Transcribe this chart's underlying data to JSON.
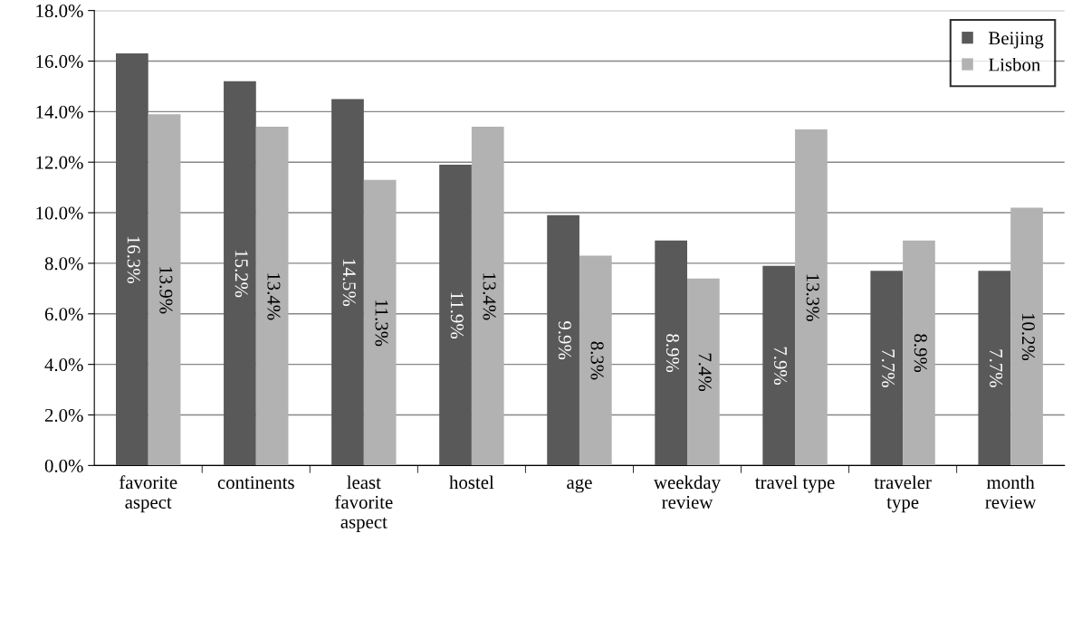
{
  "chart_data": {
    "type": "bar",
    "categories": [
      "favorite\naspect",
      "continents",
      "least\nfavorite\naspect",
      "hostel",
      "age",
      "weekday\nreview",
      "travel type",
      "traveler\ntype",
      "month\nreview"
    ],
    "series": [
      {
        "name": "Beijing",
        "color": "#595959",
        "values": [
          16.3,
          15.2,
          14.5,
          11.9,
          9.9,
          8.9,
          7.9,
          7.7,
          7.7
        ],
        "value_labels": [
          "16.3%",
          "15.2%",
          "14.5%",
          "11.9%",
          "9.9%",
          "8.9%",
          "7.9%",
          "7.7%",
          "7.7%"
        ]
      },
      {
        "name": "Lisbon",
        "color": "#b2b2b2",
        "values": [
          13.9,
          13.4,
          11.3,
          13.4,
          8.3,
          7.4,
          13.3,
          8.9,
          10.2
        ],
        "value_labels": [
          "13.9%",
          "13.4%",
          "11.3%",
          "13.4%",
          "8.3%",
          "7.4%",
          "13.3%",
          "8.9%",
          "10.2%"
        ]
      }
    ],
    "ylim": [
      0,
      18
    ],
    "yticks": [
      {
        "value": 0,
        "label": "0.0%"
      },
      {
        "value": 2,
        "label": "2.0%"
      },
      {
        "value": 4,
        "label": "4.0%"
      },
      {
        "value": 6,
        "label": "6.0%"
      },
      {
        "value": 8,
        "label": "8.0%"
      },
      {
        "value": 10,
        "label": "10.0%"
      },
      {
        "value": 12,
        "label": "12.0%"
      },
      {
        "value": 14,
        "label": "14.0%"
      },
      {
        "value": 16,
        "label": "16.0%"
      },
      {
        "value": 18,
        "label": "18.0%"
      }
    ],
    "grid": "y",
    "legend": "top right"
  }
}
